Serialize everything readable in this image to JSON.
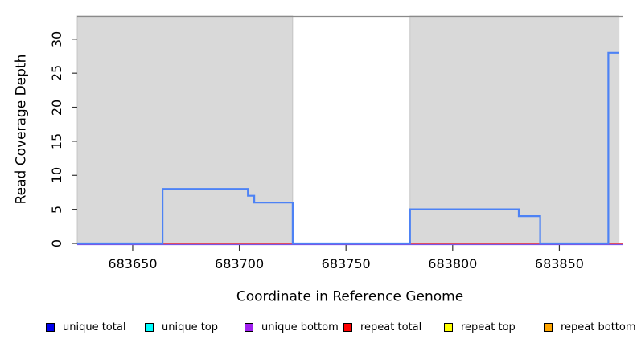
{
  "figure": {
    "xlabel": "Coordinate in Reference Genome",
    "ylabel": "Read Coverage Depth"
  },
  "chart_data": {
    "type": "line",
    "subtype": "step-coverage",
    "title": "",
    "xlabel": "Coordinate in Reference Genome",
    "ylabel": "Read Coverage Depth",
    "xlim": [
      683624,
      683880
    ],
    "ylim": [
      0,
      33.4
    ],
    "x_ticks": [
      683650,
      683700,
      683750,
      683800,
      683850
    ],
    "y_ticks": [
      0,
      5,
      10,
      15,
      20,
      25,
      30
    ],
    "grid": false,
    "plot_background": "#ffffff",
    "shaded_color": "#d9d9d9",
    "top_border_color": "#8a8a8a",
    "background_regions": [
      {
        "name": "shaded-left",
        "x0": 683624,
        "x1": 683725
      },
      {
        "name": "shaded-right",
        "x0": 683780,
        "x1": 683878
      }
    ],
    "series": [
      {
        "name": "unique bottom",
        "color": "#7d55e6",
        "steps": [
          [
            683624,
            0
          ]
        ],
        "end_x": 683880
      },
      {
        "name": "repeat total",
        "color": "#e0505f",
        "steps": [
          [
            683624,
            0
          ]
        ],
        "end_x": 683880
      },
      {
        "name": "unique total",
        "color": "#4d82f5",
        "steps": [
          [
            683624,
            0
          ],
          [
            683664,
            8
          ],
          [
            683704,
            7
          ],
          [
            683707,
            6
          ],
          [
            683725,
            0
          ],
          [
            683780,
            5
          ],
          [
            683831,
            4
          ],
          [
            683841,
            0
          ],
          [
            683873,
            28
          ]
        ],
        "end_x": 683878
      }
    ],
    "legend_position": "bottom",
    "legend": [
      {
        "label": "unique total",
        "color": "#0000ee"
      },
      {
        "label": "unique top",
        "color": "#00ffff"
      },
      {
        "label": "unique bottom",
        "color": "#a020f0"
      },
      {
        "label": "repeat total",
        "color": "#ff0000"
      },
      {
        "label": "repeat top",
        "color": "#ffff00"
      },
      {
        "label": "repeat bottom",
        "color": "#ffa500"
      }
    ]
  }
}
